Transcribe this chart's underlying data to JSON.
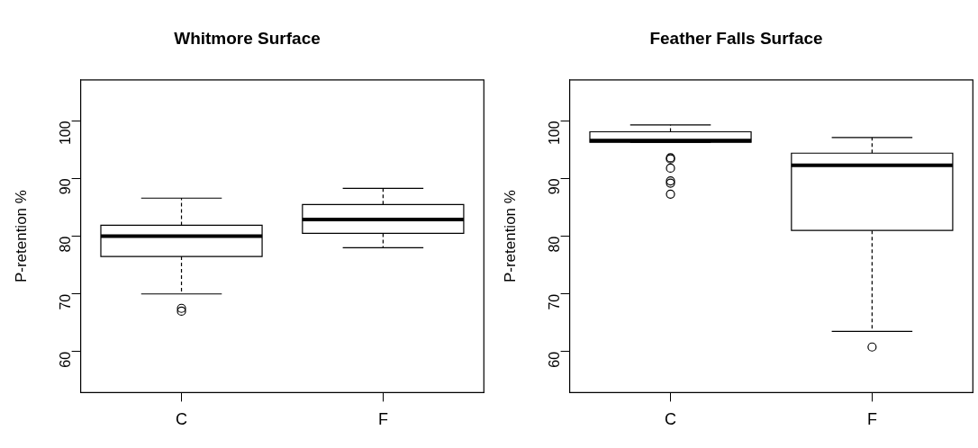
{
  "chart_data": [
    {
      "type": "box",
      "title": "Whitmore Surface",
      "ylabel": "P-retention %",
      "categories": [
        "C",
        "F"
      ],
      "ylim": [
        52.9,
        107.1
      ],
      "yticks": [
        60,
        70,
        80,
        90,
        100
      ],
      "grid": false,
      "legend": false,
      "marker": "circle",
      "boxes": [
        {
          "low": 70.0,
          "q1": 76.5,
          "median": 80.0,
          "q3": 81.9,
          "high": 86.6,
          "outliers": [
            67.0,
            67.5
          ]
        },
        {
          "low": 78.0,
          "q1": 80.5,
          "median": 82.9,
          "q3": 85.5,
          "high": 88.3
        }
      ]
    },
    {
      "type": "box",
      "title": "Feather Falls Surface",
      "ylabel": "P-retention %",
      "categories": [
        "C",
        "F"
      ],
      "ylim": [
        52.9,
        107.1
      ],
      "yticks": [
        60,
        70,
        80,
        90,
        100
      ],
      "grid": false,
      "legend": false,
      "marker": "circle",
      "boxes": [
        {
          "low": 96.3,
          "q1": 96.3,
          "median": 96.6,
          "q3": 98.1,
          "high": 99.3,
          "outliers": [
            93.6,
            93.4,
            91.8,
            89.6,
            89.2,
            87.3
          ]
        },
        {
          "low": 63.5,
          "q1": 81.0,
          "median": 92.3,
          "q3": 94.4,
          "high": 97.1,
          "outliers": [
            60.8
          ]
        }
      ]
    }
  ]
}
